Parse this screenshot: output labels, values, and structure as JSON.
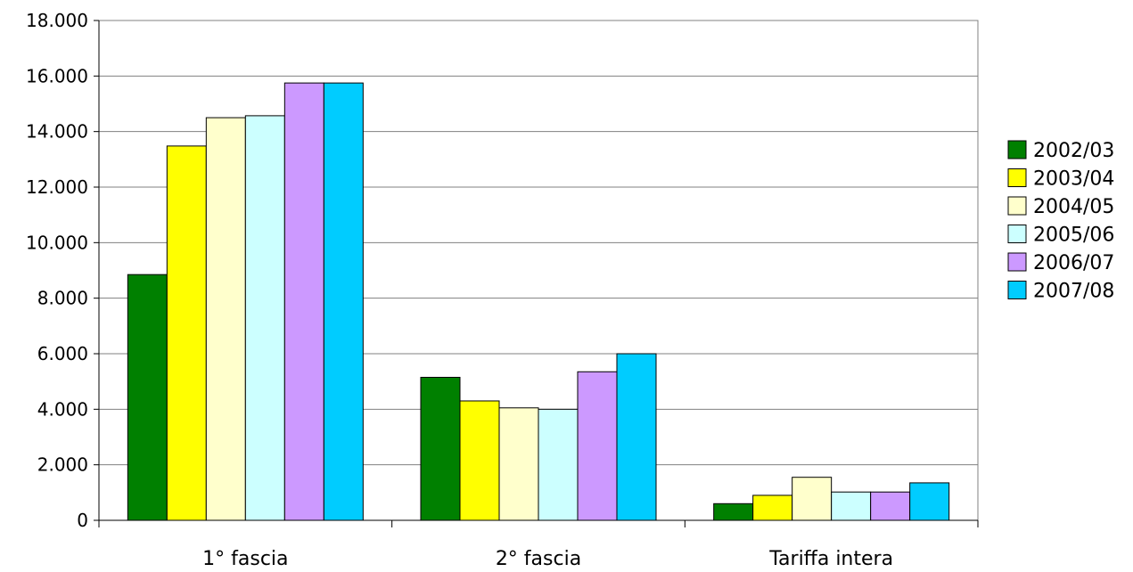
{
  "chart_data": {
    "type": "bar",
    "title": "",
    "xlabel": "",
    "ylabel": "",
    "categories": [
      "1° fascia",
      "2° fascia",
      "Tariffa intera"
    ],
    "series": [
      {
        "name": "2002/03",
        "values": [
          8850,
          5150,
          600
        ],
        "color": "#008000"
      },
      {
        "name": "2003/04",
        "values": [
          13480,
          4300,
          900
        ],
        "color": "#FFFF00"
      },
      {
        "name": "2004/05",
        "values": [
          14500,
          4050,
          1550
        ],
        "color": "#FFFFCC"
      },
      {
        "name": "2005/06",
        "values": [
          14570,
          4000,
          1020
        ],
        "color": "#CCFFFF"
      },
      {
        "name": "2006/07",
        "values": [
          15750,
          5350,
          1020
        ],
        "color": "#CC99FF"
      },
      {
        "name": "2007/08",
        "values": [
          15750,
          6000,
          1350
        ],
        "color": "#00CCFF"
      }
    ],
    "ylim": [
      0,
      18000
    ],
    "yticks": [
      0,
      2000,
      4000,
      6000,
      8000,
      10000,
      12000,
      14000,
      16000,
      18000
    ],
    "ytick_labels": [
      "0",
      "2.000",
      "4.000",
      "6.000",
      "8.000",
      "10.000",
      "12.000",
      "14.000",
      "16.000",
      "18.000"
    ],
    "grid": true,
    "legend_position": "right"
  }
}
